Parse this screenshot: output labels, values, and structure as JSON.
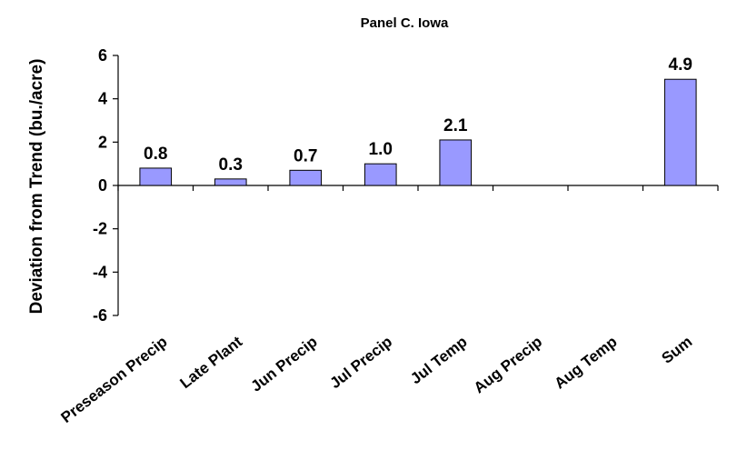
{
  "chart_data": {
    "type": "bar",
    "title": "Panel C. Iowa",
    "ylabel": "Deviation from Trend (bu./acre)",
    "xlabel": "",
    "categories": [
      "Preseason Precip",
      "Late Plant",
      "Jun Precip",
      "Jul Precip",
      "Jul Temp",
      "Aug Precip",
      "Aug Temp",
      "Sum"
    ],
    "values": [
      0.8,
      0.3,
      0.7,
      1.0,
      2.1,
      0,
      0,
      4.9
    ],
    "data_labels": [
      "0.8",
      "0.3",
      "0.7",
      "1.0",
      "2.1",
      "",
      "",
      "4.9"
    ],
    "ylim": [
      -6,
      6
    ],
    "yticks": [
      6,
      4,
      2,
      0,
      -2,
      -4,
      -6
    ],
    "grid": false,
    "bar_color": "#9999ff",
    "bar_edge_color": "#000000"
  }
}
